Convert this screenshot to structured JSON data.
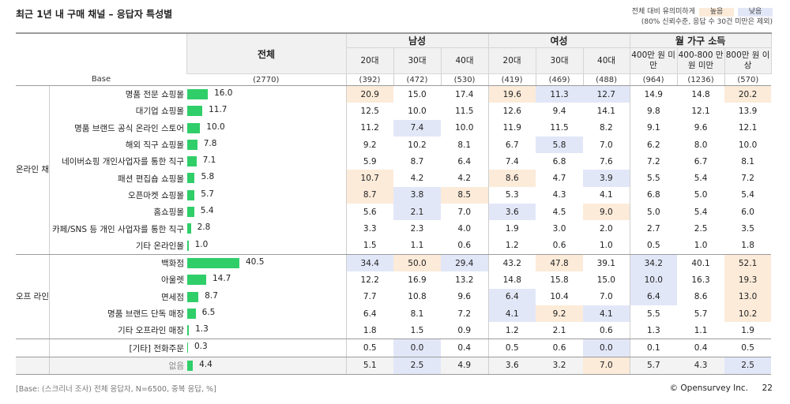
{
  "page": {
    "title": "최근 1년 내 구매 채널 – 응답자 특성별",
    "legend": {
      "label": "전체 대비 유의미하게",
      "high": "높음",
      "low": "낮음",
      "note": "(80% 신뢰수준, 응답 수 30건 미만은 제외)"
    },
    "footnote": "[Base: (스크리너 조사) 전체 응답자, N=6500, 중복 응답, %]",
    "copyright": "© Opensurvey Inc.",
    "page_number": "22"
  },
  "table": {
    "total_header": "전체",
    "groups": [
      {
        "label": "남성",
        "cols": [
          "20대",
          "30대",
          "40대"
        ]
      },
      {
        "label": "여성",
        "cols": [
          "20대",
          "30대",
          "40대"
        ]
      },
      {
        "label": "월 가구 소득",
        "cols": [
          "400만 원 미만",
          "400-800 만 원 미만",
          "800만 원 이상"
        ]
      }
    ],
    "base": {
      "label": "Base",
      "total": "(2770)",
      "values": [
        "(392)",
        "(472)",
        "(530)",
        "(419)",
        "(469)",
        "(488)",
        "(964)",
        "(1236)",
        "(570)"
      ]
    },
    "sections": [
      {
        "label": "온라인 채널",
        "rows": [
          {
            "label": "명품 전문 쇼핑몰",
            "total": 16.0,
            "values": [
              "20.9",
              "15.0",
              "17.4",
              "19.6",
              "11.3",
              "12.7",
              "14.9",
              "14.8",
              "20.2"
            ],
            "flags": [
              "H",
              "",
              "",
              "H",
              "L",
              "L",
              "",
              "",
              "H"
            ]
          },
          {
            "label": "대기업 쇼핑몰",
            "total": 11.7,
            "values": [
              "12.5",
              "10.0",
              "11.5",
              "12.6",
              "9.4",
              "14.1",
              "9.8",
              "12.1",
              "13.9"
            ],
            "flags": [
              "",
              "",
              "",
              "",
              "",
              "",
              "",
              "",
              ""
            ]
          },
          {
            "label": "명품 브랜드 공식 온라인 스토어",
            "total": 10.0,
            "values": [
              "11.2",
              "7.4",
              "10.0",
              "11.9",
              "11.5",
              "8.2",
              "9.1",
              "9.6",
              "12.1"
            ],
            "flags": [
              "",
              "L",
              "",
              "",
              "",
              "",
              "",
              "",
              ""
            ]
          },
          {
            "label": "해외 직구 쇼핑몰",
            "total": 7.8,
            "values": [
              "9.2",
              "10.2",
              "8.1",
              "6.7",
              "5.8",
              "7.0",
              "6.2",
              "8.0",
              "10.0"
            ],
            "flags": [
              "",
              "",
              "",
              "",
              "L",
              "",
              "",
              "",
              ""
            ]
          },
          {
            "label": "네이버쇼핑 개인사업자를 통한 직구",
            "total": 7.1,
            "values": [
              "5.9",
              "8.7",
              "6.4",
              "7.4",
              "6.8",
              "7.6",
              "7.2",
              "6.7",
              "8.1"
            ],
            "flags": [
              "",
              "",
              "",
              "",
              "",
              "",
              "",
              "",
              ""
            ]
          },
          {
            "label": "패션 편집숍 쇼핑몰",
            "total": 5.8,
            "values": [
              "10.7",
              "4.2",
              "4.2",
              "8.6",
              "4.7",
              "3.9",
              "5.5",
              "5.4",
              "7.2"
            ],
            "flags": [
              "H",
              "",
              "",
              "H",
              "",
              "L",
              "",
              "",
              ""
            ]
          },
          {
            "label": "오픈마켓 쇼핑몰",
            "total": 5.7,
            "values": [
              "8.7",
              "3.8",
              "8.5",
              "5.3",
              "4.3",
              "4.1",
              "6.8",
              "5.0",
              "5.4"
            ],
            "flags": [
              "H",
              "L",
              "H",
              "",
              "",
              "",
              "",
              "",
              ""
            ]
          },
          {
            "label": "홈쇼핑몰",
            "total": 5.4,
            "values": [
              "5.6",
              "2.1",
              "7.0",
              "3.6",
              "4.5",
              "9.0",
              "5.0",
              "5.4",
              "6.0"
            ],
            "flags": [
              "",
              "L",
              "",
              "L",
              "",
              "H",
              "",
              "",
              ""
            ]
          },
          {
            "label": "카페/SNS 등 개인 사업자를 통한 직구",
            "total": 2.8,
            "values": [
              "3.3",
              "2.3",
              "4.0",
              "1.9",
              "3.0",
              "2.0",
              "2.7",
              "2.5",
              "3.5"
            ],
            "flags": [
              "",
              "",
              "",
              "",
              "",
              "",
              "",
              "",
              ""
            ]
          },
          {
            "label": "기타 온라인몰",
            "total": 1.0,
            "values": [
              "1.5",
              "1.1",
              "0.6",
              "1.2",
              "0.6",
              "1.0",
              "0.5",
              "1.0",
              "1.8"
            ],
            "flags": [
              "",
              "",
              "",
              "",
              "",
              "",
              "",
              "",
              ""
            ]
          }
        ]
      },
      {
        "label": "오프 라인 채널",
        "rows": [
          {
            "label": "백화점",
            "total": 40.5,
            "values": [
              "34.4",
              "50.0",
              "29.4",
              "43.2",
              "47.8",
              "39.1",
              "34.2",
              "40.1",
              "52.1"
            ],
            "flags": [
              "L",
              "H",
              "L",
              "",
              "H",
              "",
              "L",
              "",
              "H"
            ]
          },
          {
            "label": "아울렛",
            "total": 14.7,
            "values": [
              "12.2",
              "16.9",
              "13.2",
              "14.8",
              "15.8",
              "15.0",
              "10.0",
              "16.3",
              "19.3"
            ],
            "flags": [
              "",
              "",
              "",
              "",
              "",
              "",
              "L",
              "",
              "H"
            ]
          },
          {
            "label": "면세점",
            "total": 8.7,
            "values": [
              "7.7",
              "10.8",
              "9.6",
              "6.4",
              "10.4",
              "7.0",
              "6.4",
              "8.6",
              "13.0"
            ],
            "flags": [
              "",
              "",
              "",
              "L",
              "",
              "",
              "L",
              "",
              "H"
            ]
          },
          {
            "label": "명품 브랜드 단독 매장",
            "total": 6.5,
            "values": [
              "6.4",
              "8.1",
              "7.2",
              "4.1",
              "9.2",
              "4.1",
              "5.5",
              "5.7",
              "10.2"
            ],
            "flags": [
              "",
              "",
              "",
              "L",
              "H",
              "L",
              "",
              "",
              "H"
            ]
          },
          {
            "label": "기타 오프라인 매장",
            "total": 1.3,
            "values": [
              "1.8",
              "1.5",
              "0.9",
              "1.2",
              "2.1",
              "0.6",
              "1.3",
              "1.1",
              "1.9"
            ],
            "flags": [
              "",
              "",
              "",
              "",
              "",
              "",
              "",
              "",
              ""
            ]
          }
        ]
      }
    ],
    "extra_rows": [
      {
        "label": "[기타] 전화주문",
        "total": 0.3,
        "values": [
          "0.5",
          "0.0",
          "0.4",
          "0.5",
          "0.6",
          "0.0",
          "0.1",
          "0.4",
          "0.5"
        ],
        "flags": [
          "",
          "L",
          "",
          "",
          "",
          "L",
          "",
          "",
          ""
        ]
      },
      {
        "label": "없음",
        "total": 4.4,
        "values": [
          "5.1",
          "2.5",
          "4.9",
          "3.6",
          "3.2",
          "7.0",
          "5.7",
          "4.3",
          "2.5"
        ],
        "flags": [
          "",
          "L",
          "",
          "",
          "",
          "H",
          "",
          "",
          "L"
        ]
      }
    ],
    "bar_max": 40.5,
    "colors": {
      "bar": "#2fce69",
      "high": "#fcebd9",
      "low": "#e2e7f8"
    }
  }
}
